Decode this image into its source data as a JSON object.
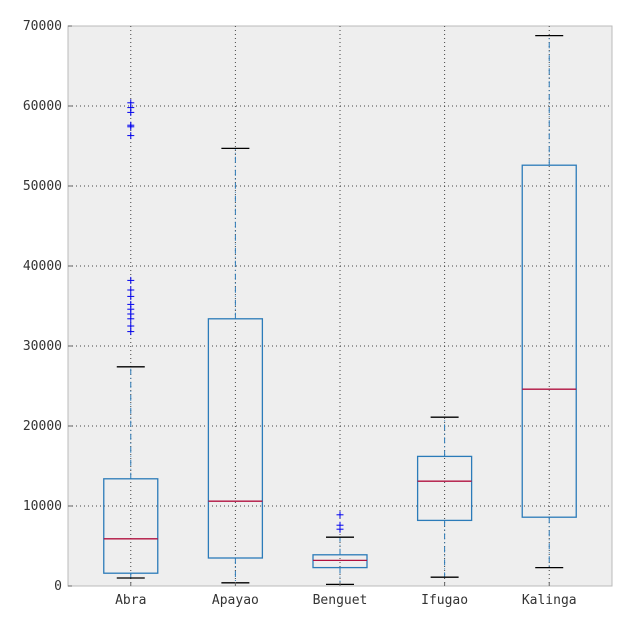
{
  "chart_data": {
    "type": "box",
    "categories": [
      "Abra",
      "Apayao",
      "Benguet",
      "Ifugao",
      "Kalinga"
    ],
    "ylim": [
      0,
      70000
    ],
    "yticks": [
      0,
      10000,
      20000,
      30000,
      40000,
      50000,
      60000,
      70000
    ],
    "ytick_labels": [
      "0",
      "10000",
      "20000",
      "30000",
      "40000",
      "50000",
      "60000",
      "70000"
    ],
    "grid": true,
    "boxes": [
      {
        "name": "Abra",
        "whisker_low": 1000,
        "q1": 1600,
        "median": 5900,
        "q3": 13400,
        "whisker_high": 27400,
        "outliers": [
          31800,
          32500,
          33400,
          34000,
          34600,
          35200,
          36200,
          37000,
          38200,
          56300,
          57400,
          57600,
          59200,
          59800,
          60400
        ]
      },
      {
        "name": "Apayao",
        "whisker_low": 400,
        "q1": 3500,
        "median": 10600,
        "q3": 33400,
        "whisker_high": 54700,
        "outliers": []
      },
      {
        "name": "Benguet",
        "whisker_low": 200,
        "q1": 2300,
        "median": 3200,
        "q3": 3900,
        "whisker_high": 6100,
        "outliers": [
          7100,
          7600,
          8900
        ]
      },
      {
        "name": "Ifugao",
        "whisker_low": 1100,
        "q1": 8200,
        "median": 13100,
        "q3": 16200,
        "whisker_high": 21100,
        "outliers": []
      },
      {
        "name": "Kalinga",
        "whisker_low": 2300,
        "q1": 8600,
        "median": 24600,
        "q3": 52600,
        "whisker_high": 68800,
        "outliers": []
      }
    ],
    "colors": {
      "box": "#2b7bb9",
      "median": "#b0103f",
      "whisker": "#2b7bb9",
      "cap": "#000000",
      "outlier": "#0000ee",
      "background": "#eeeeee",
      "grid": "#444444"
    }
  }
}
